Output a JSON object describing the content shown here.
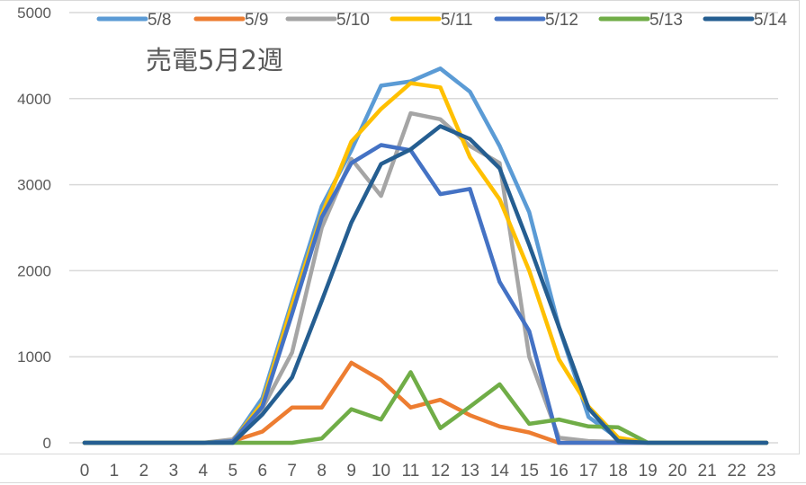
{
  "chart_data": {
    "type": "line",
    "title": "売電5月2週",
    "xlabel": "",
    "ylabel": "",
    "ylim": [
      0,
      5000
    ],
    "yticks": [
      0,
      1000,
      2000,
      3000,
      4000,
      5000
    ],
    "grid": true,
    "legend_position": "top",
    "categories": [
      "0",
      "1",
      "2",
      "3",
      "4",
      "5",
      "6",
      "7",
      "8",
      "9",
      "10",
      "11",
      "12",
      "13",
      "14",
      "15",
      "16",
      "17",
      "18",
      "19",
      "20",
      "21",
      "22",
      "23"
    ],
    "series": [
      {
        "name": "5/8",
        "color": "#5B9BD5",
        "values": [
          0,
          0,
          0,
          0,
          0,
          20,
          520,
          1650,
          2750,
          3400,
          4150,
          4200,
          4350,
          4080,
          3450,
          2680,
          1350,
          300,
          50,
          0,
          0,
          0,
          0,
          0
        ]
      },
      {
        "name": "5/9",
        "color": "#ED7D31",
        "values": [
          0,
          0,
          0,
          0,
          0,
          20,
          130,
          410,
          410,
          930,
          730,
          410,
          500,
          320,
          190,
          120,
          0,
          0,
          0,
          0,
          0,
          0,
          0,
          0
        ]
      },
      {
        "name": "5/10",
        "color": "#A5A5A5",
        "values": [
          0,
          0,
          0,
          0,
          0,
          40,
          400,
          1050,
          2500,
          3300,
          2870,
          3830,
          3760,
          3450,
          3250,
          1000,
          60,
          20,
          10,
          0,
          0,
          0,
          0,
          0
        ]
      },
      {
        "name": "5/11",
        "color": "#FFC000",
        "values": [
          0,
          0,
          0,
          0,
          0,
          20,
          460,
          1600,
          2650,
          3500,
          3880,
          4180,
          4130,
          3320,
          2830,
          2000,
          970,
          420,
          60,
          0,
          0,
          0,
          0,
          0
        ]
      },
      {
        "name": "5/12",
        "color": "#4472C4",
        "values": [
          0,
          0,
          0,
          0,
          0,
          20,
          420,
          1500,
          2620,
          3250,
          3460,
          3400,
          2890,
          2950,
          1870,
          1300,
          0,
          0,
          0,
          0,
          0,
          0,
          0,
          0
        ]
      },
      {
        "name": "5/13",
        "color": "#70AD47",
        "values": [
          0,
          0,
          0,
          0,
          0,
          0,
          0,
          0,
          50,
          390,
          270,
          820,
          170,
          420,
          680,
          220,
          270,
          190,
          180,
          0,
          0,
          0,
          0,
          0
        ]
      },
      {
        "name": "5/14",
        "color": "#255E91",
        "values": [
          0,
          0,
          0,
          0,
          0,
          0,
          330,
          760,
          1650,
          2560,
          3240,
          3410,
          3680,
          3530,
          3190,
          2300,
          1350,
          400,
          20,
          0,
          0,
          0,
          0,
          0
        ]
      }
    ]
  },
  "chart": {
    "title": "売電5月2週",
    "y_ticks": [
      "0",
      "1000",
      "2000",
      "3000",
      "4000",
      "5000"
    ],
    "x_ticks": [
      "0",
      "1",
      "2",
      "3",
      "4",
      "5",
      "6",
      "7",
      "8",
      "9",
      "10",
      "11",
      "12",
      "13",
      "14",
      "15",
      "16",
      "17",
      "18",
      "19",
      "20",
      "21",
      "22",
      "23"
    ],
    "legend": [
      "5/8",
      "5/9",
      "5/10",
      "5/11",
      "5/12",
      "5/13",
      "5/14"
    ]
  }
}
